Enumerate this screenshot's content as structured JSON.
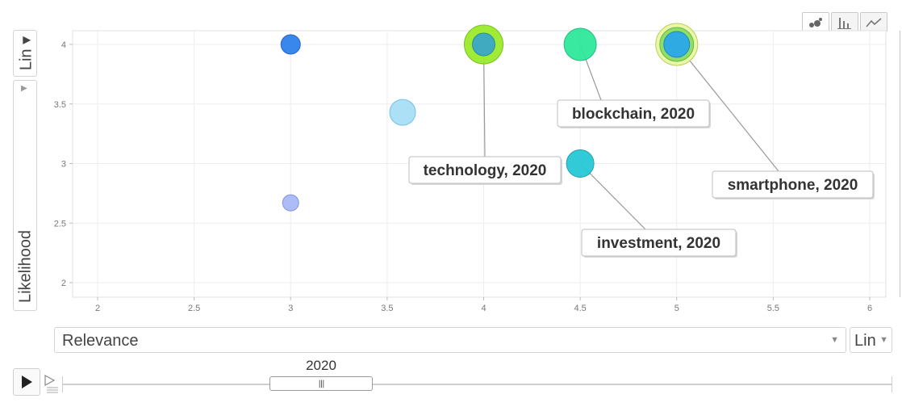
{
  "controls": {
    "y_scale": "Lin",
    "y_axis_label": "Likelihood",
    "x_axis_label": "Relevance",
    "x_scale": "Lin",
    "time_label": "2020",
    "view_tabs": [
      "bubble-chart-icon",
      "bar-chart-icon",
      "line-chart-icon"
    ]
  },
  "chart_data": {
    "type": "scatter",
    "xlabel": "Relevance",
    "ylabel": "Likelihood",
    "xlim": [
      1.9,
      6.1
    ],
    "ylim": [
      1.9,
      4.1
    ],
    "x_ticks": [
      "2",
      "2.5",
      "3",
      "3.5",
      "4",
      "4.5",
      "5",
      "5.5",
      "6"
    ],
    "y_ticks": [
      "2",
      "2.5",
      "3",
      "3.5",
      "4"
    ],
    "grid": true,
    "points": [
      {
        "x": 3.0,
        "y": 4.0,
        "size": 12,
        "color": "#2f80ed",
        "border": "#1a5fc4"
      },
      {
        "x": 3.58,
        "y": 3.43,
        "size": 16,
        "color": "#a7dff7",
        "border": "#6fbfdf"
      },
      {
        "x": 3.0,
        "y": 2.67,
        "size": 10,
        "color": "#a9b9f6",
        "border": "#7d8fdc"
      },
      {
        "x": 4.0,
        "y": 4.0,
        "size": 24,
        "color": "#9bea2c",
        "border": "#6fbf10",
        "label": "technology, 2020"
      },
      {
        "x": 4.0,
        "y": 4.0,
        "size": 14,
        "color": "#3aa7c8",
        "border": "#2a86a4"
      },
      {
        "x": 4.5,
        "y": 4.0,
        "size": 20,
        "color": "#2ee89a",
        "border": "#1fb878",
        "label": "blockchain, 2020"
      },
      {
        "x": 4.5,
        "y": 3.0,
        "size": 17,
        "color": "#27c9d6",
        "border": "#1a9aa6",
        "label": "investment, 2020"
      },
      {
        "x": 5.0,
        "y": 4.0,
        "size": 26,
        "color": "#e9f7a6",
        "border": "#b6cc4c"
      },
      {
        "x": 5.0,
        "y": 4.0,
        "size": 21,
        "color": "#8ddc64",
        "border": "#5fb83a"
      },
      {
        "x": 5.0,
        "y": 4.0,
        "size": 16,
        "color": "#2ba8ea",
        "border": "#1a82c0",
        "label": "smartphone, 2020"
      }
    ]
  }
}
